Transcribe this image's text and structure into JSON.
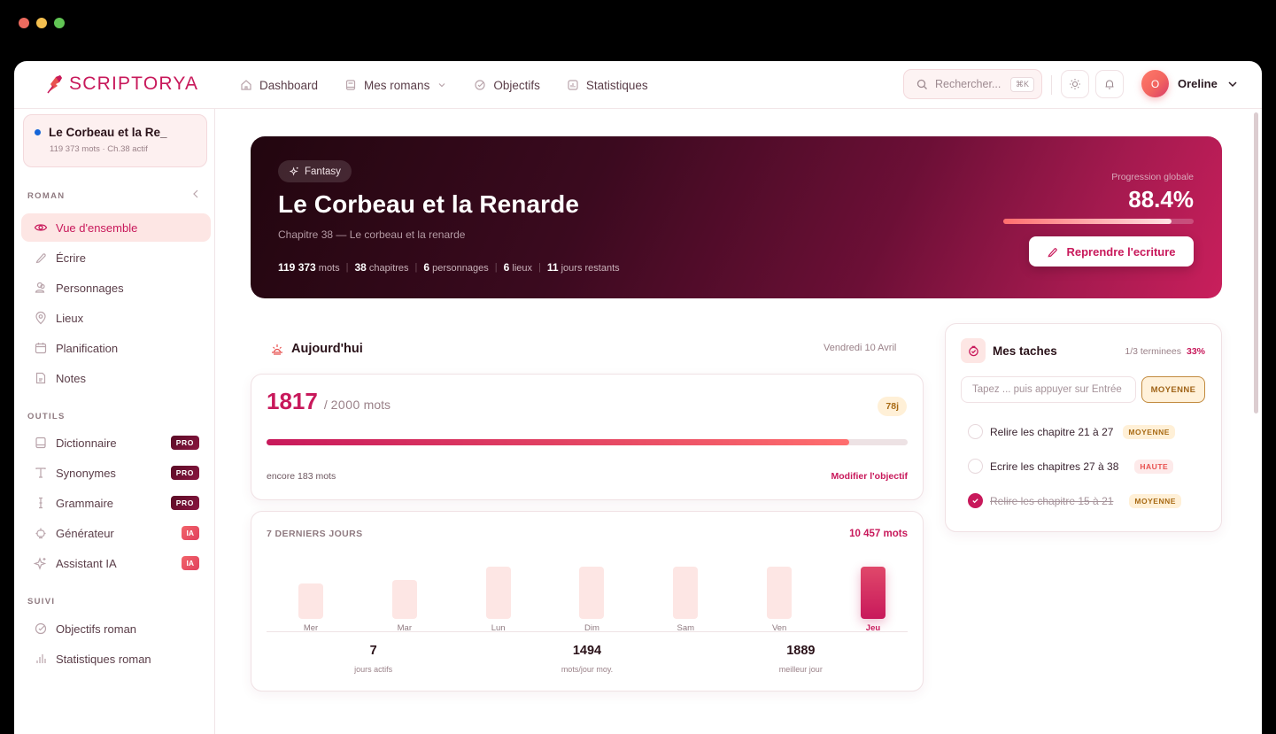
{
  "window": {
    "traffic_lights": [
      "#ec6a5e",
      "#f4bf4f",
      "#61c554"
    ]
  },
  "header": {
    "brand": "SCRIPTORYA",
    "nav": [
      {
        "label": "Dashboard",
        "icon": "home-icon"
      },
      {
        "label": "Mes romans",
        "icon": "book-icon",
        "dropdown": true
      },
      {
        "label": "Objectifs",
        "icon": "target-icon"
      },
      {
        "label": "Statistiques",
        "icon": "chart-icon"
      }
    ],
    "search": {
      "placeholder": "Rechercher...",
      "shortcut": "⌘K"
    },
    "user": {
      "initial": "O",
      "name": "Oreline"
    }
  },
  "sidebar": {
    "project": {
      "title": "Le Corbeau et la Re_",
      "meta": "119 373 mots · Ch.38 actif"
    },
    "sections": {
      "roman": "ROMAN",
      "outils": "OUTILS",
      "suivi": "SUIVI"
    },
    "roman_items": [
      {
        "label": "Vue d'ensemble",
        "active": true
      },
      {
        "label": "Écrire"
      },
      {
        "label": "Personnages"
      },
      {
        "label": "Lieux"
      },
      {
        "label": "Planification"
      },
      {
        "label": "Notes"
      }
    ],
    "outils_items": [
      {
        "label": "Dictionnaire",
        "badge": "PRO"
      },
      {
        "label": "Synonymes",
        "badge": "PRO"
      },
      {
        "label": "Grammaire",
        "badge": "PRO"
      },
      {
        "label": "Générateur",
        "badge": "IA"
      },
      {
        "label": "Assistant IA",
        "badge": "IA"
      }
    ],
    "suivi_items": [
      {
        "label": "Objectifs roman"
      },
      {
        "label": "Statistiques roman"
      }
    ]
  },
  "hero": {
    "genre": "Fantasy",
    "title": "Le Corbeau et la Renarde",
    "subtitle": "Chapitre 38 — Le corbeau et la renarde",
    "stats": [
      {
        "value": "119 373",
        "label": "mots"
      },
      {
        "value": "38",
        "label": "chapitres"
      },
      {
        "value": "6",
        "label": "personnages"
      },
      {
        "value": "6",
        "label": "lieux"
      },
      {
        "value": "11",
        "label": "jours restants"
      }
    ],
    "progress_label": "Progression globale",
    "progress_value": "88.4%",
    "progress_pct": 88.4,
    "resume_button": "Reprendre l'ecriture"
  },
  "today": {
    "title": "Aujourd'hui",
    "date": "Vendredi 10 Avril",
    "words_written": "1817",
    "words_goal": "2000",
    "words_unit": "mots",
    "streak_badge": "78j",
    "remaining": "encore 183 mots",
    "edit_goal": "Modifier l'objectif",
    "progress_pct": 90.85
  },
  "week": {
    "label": "7 DERNIERS JOURS",
    "total": "10 457 mots",
    "days": [
      {
        "label": "Mer",
        "height": 40
      },
      {
        "label": "Mar",
        "height": 44
      },
      {
        "label": "Lun",
        "height": 59
      },
      {
        "label": "Dim",
        "height": 59
      },
      {
        "label": "Sam",
        "height": 59
      },
      {
        "label": "Ven",
        "height": 59
      },
      {
        "label": "Jeu",
        "height": 59,
        "active": true
      }
    ],
    "stats": [
      {
        "value": "7",
        "label": "jours actifs"
      },
      {
        "value": "1494",
        "label": "mots/jour moy."
      },
      {
        "value": "1889",
        "label": "meilleur jour"
      }
    ]
  },
  "tasks": {
    "title": "Mes taches",
    "count": "1/3 terminees",
    "pct": "33%",
    "input_placeholder": "Tapez ... puis appuyer sur Entrée",
    "priority_selector": "MOYENNE",
    "items": [
      {
        "text": "Relire les chapitre 21 à 27",
        "priority": "MOYENNE",
        "done": false
      },
      {
        "text": "Ecrire les chapitres 27 à 38",
        "priority": "HAUTE",
        "done": false
      },
      {
        "text": "Relire les chapitre 15 à 21",
        "priority": "MOYENNE",
        "done": true
      }
    ]
  }
}
